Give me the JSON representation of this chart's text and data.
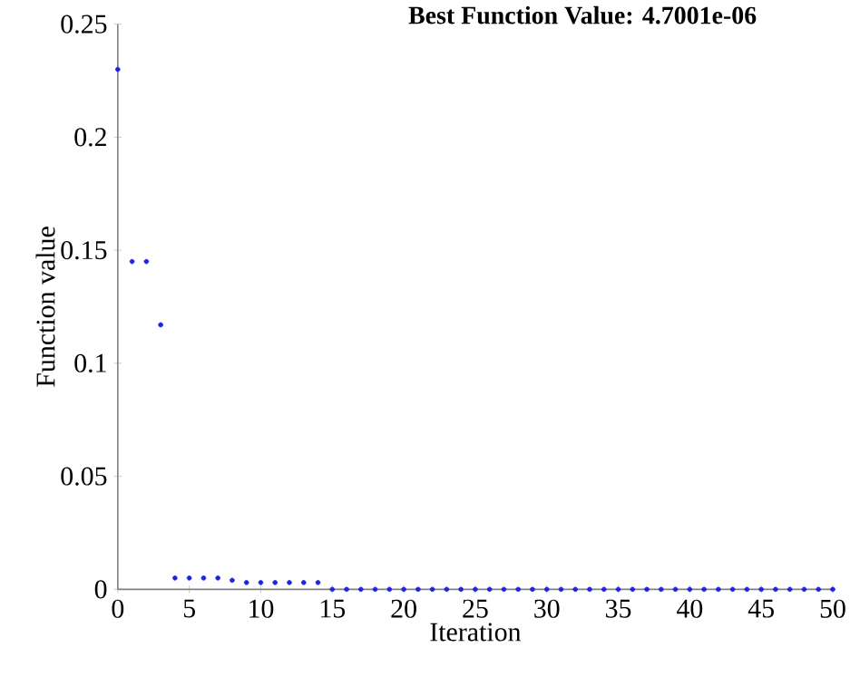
{
  "chart_data": {
    "type": "scatter",
    "title": "Best Function Value: 4.7001e-06",
    "xlabel": "Iteration",
    "ylabel": "Function value",
    "x": [
      0,
      1,
      2,
      3,
      4,
      5,
      6,
      7,
      8,
      9,
      10,
      11,
      12,
      13,
      14,
      15,
      16,
      17,
      18,
      19,
      20,
      21,
      22,
      23,
      24,
      25,
      26,
      27,
      28,
      29,
      30,
      31,
      32,
      33,
      34,
      35,
      36,
      37,
      38,
      39,
      40,
      41,
      42,
      43,
      44,
      45,
      46,
      47,
      48,
      49,
      50
    ],
    "series": [
      {
        "color": "#2222dd",
        "values": [
          0.23,
          0.145,
          0.145,
          0.117,
          0.005,
          0.005,
          0.005,
          0.005,
          0.004,
          0.003,
          0.003,
          0.003,
          0.003,
          0.003,
          0.003,
          0,
          0,
          0,
          0,
          0,
          0,
          0,
          0,
          0,
          0,
          0,
          0,
          0,
          0,
          0,
          0,
          0,
          0,
          0,
          0,
          0,
          0,
          0,
          0,
          0,
          0,
          0,
          0,
          0,
          0,
          0,
          0,
          0,
          0,
          0,
          0
        ]
      }
    ],
    "xlim": [
      0,
      50
    ],
    "ylim": [
      0,
      0.25
    ],
    "xticks": [
      0,
      5,
      10,
      15,
      20,
      25,
      30,
      35,
      40,
      45,
      50
    ],
    "yticks": [
      0,
      0.05,
      0.1,
      0.15,
      0.2,
      0.25
    ],
    "marker": "circle",
    "grid": false
  }
}
